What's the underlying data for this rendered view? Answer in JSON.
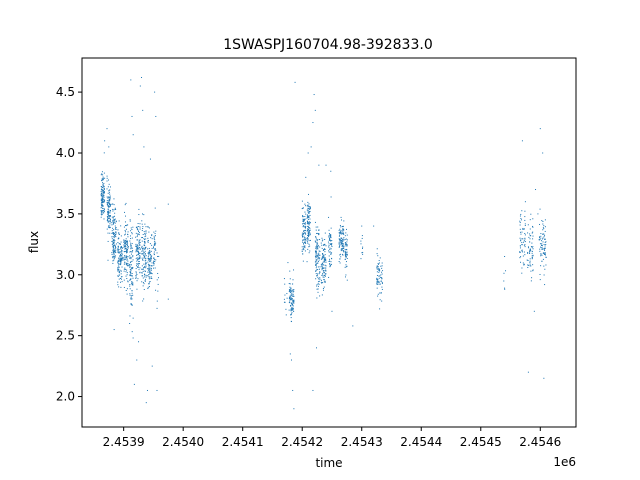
{
  "chart_data": {
    "type": "scatter",
    "title": "1SWASPJ160704.98-392833.0",
    "xlabel": "time",
    "ylabel": "flux",
    "x_offset_label": "1e6",
    "x_unit_multiplier": 1000000,
    "xlim": [
      2453830,
      2454660
    ],
    "ylim": [
      1.75,
      4.78
    ],
    "xticks": [
      2453900,
      2454000,
      2454100,
      2454200,
      2454300,
      2454400,
      2454500,
      2454600
    ],
    "xtick_labels": [
      "2.4539",
      "2.4540",
      "2.4541",
      "2.4542",
      "2.4543",
      "2.4544",
      "2.4545",
      "2.4546"
    ],
    "yticks": [
      2.0,
      2.5,
      3.0,
      3.5,
      4.0,
      4.5
    ],
    "ytick_labels": [
      "2.0",
      "2.5",
      "3.0",
      "3.5",
      "4.0",
      "4.5"
    ],
    "grid": false,
    "marker_color": "#1f77b4",
    "clusters": [
      {
        "x_start": 2453862,
        "x_end": 2453868,
        "y_center": 3.65,
        "y_spread": 0.18,
        "count": 120
      },
      {
        "x_start": 2453872,
        "x_end": 2453878,
        "y_center": 3.55,
        "y_spread": 0.2,
        "count": 110
      },
      {
        "x_start": 2453880,
        "x_end": 2453888,
        "y_center": 3.3,
        "y_spread": 0.22,
        "count": 120
      },
      {
        "x_start": 2453890,
        "x_end": 2453898,
        "y_center": 3.15,
        "y_spread": 0.2,
        "count": 120
      },
      {
        "x_start": 2453900,
        "x_end": 2453908,
        "y_center": 3.2,
        "y_spread": 0.25,
        "count": 120
      },
      {
        "x_start": 2453910,
        "x_end": 2453916,
        "y_center": 3.05,
        "y_spread": 0.35,
        "count": 100
      },
      {
        "x_start": 2453920,
        "x_end": 2453928,
        "y_center": 3.2,
        "y_spread": 0.25,
        "count": 110
      },
      {
        "x_start": 2453930,
        "x_end": 2453938,
        "y_center": 3.15,
        "y_spread": 0.28,
        "count": 110
      },
      {
        "x_start": 2453940,
        "x_end": 2453948,
        "y_center": 3.1,
        "y_spread": 0.22,
        "count": 100
      },
      {
        "x_start": 2453950,
        "x_end": 2453954,
        "y_center": 3.2,
        "y_spread": 0.25,
        "count": 40
      },
      {
        "x_start": 2453956,
        "x_end": 2453960,
        "y_center": 3.0,
        "y_spread": 0.25,
        "count": 10
      },
      {
        "x_start": 2454170,
        "x_end": 2454176,
        "y_center": 2.8,
        "y_spread": 0.15,
        "count": 10
      },
      {
        "x_start": 2454178,
        "x_end": 2454186,
        "y_center": 2.8,
        "y_spread": 0.15,
        "count": 100
      },
      {
        "x_start": 2454200,
        "x_end": 2454206,
        "y_center": 3.35,
        "y_spread": 0.18,
        "count": 90
      },
      {
        "x_start": 2454208,
        "x_end": 2454214,
        "y_center": 3.4,
        "y_spread": 0.2,
        "count": 100
      },
      {
        "x_start": 2454222,
        "x_end": 2454230,
        "y_center": 3.15,
        "y_spread": 0.25,
        "count": 110
      },
      {
        "x_start": 2454232,
        "x_end": 2454240,
        "y_center": 3.1,
        "y_spread": 0.2,
        "count": 100
      },
      {
        "x_start": 2454244,
        "x_end": 2454250,
        "y_center": 3.25,
        "y_spread": 0.2,
        "count": 60
      },
      {
        "x_start": 2454262,
        "x_end": 2454270,
        "y_center": 3.3,
        "y_spread": 0.15,
        "count": 100
      },
      {
        "x_start": 2454272,
        "x_end": 2454276,
        "y_center": 3.2,
        "y_spread": 0.15,
        "count": 50
      },
      {
        "x_start": 2454298,
        "x_end": 2454302,
        "y_center": 3.2,
        "y_spread": 0.15,
        "count": 10
      },
      {
        "x_start": 2454325,
        "x_end": 2454335,
        "y_center": 3.0,
        "y_spread": 0.15,
        "count": 70
      },
      {
        "x_start": 2454538,
        "x_end": 2454542,
        "y_center": 3.0,
        "y_spread": 0.1,
        "count": 5
      },
      {
        "x_start": 2454565,
        "x_end": 2454575,
        "y_center": 3.3,
        "y_spread": 0.2,
        "count": 60
      },
      {
        "x_start": 2454578,
        "x_end": 2454588,
        "y_center": 3.2,
        "y_spread": 0.25,
        "count": 60
      },
      {
        "x_start": 2454598,
        "x_end": 2454610,
        "y_center": 3.25,
        "y_spread": 0.25,
        "count": 80
      }
    ],
    "outliers": [
      [
        2453868,
        4.1
      ],
      [
        2453872,
        4.2
      ],
      [
        2453875,
        4.05
      ],
      [
        2453884,
        2.55
      ],
      [
        2453912,
        4.6
      ],
      [
        2453914,
        4.3
      ],
      [
        2453916,
        4.15
      ],
      [
        2453918,
        2.1
      ],
      [
        2453922,
        2.3
      ],
      [
        2453928,
        4.55
      ],
      [
        2453930,
        4.62
      ],
      [
        2453932,
        4.35
      ],
      [
        2453934,
        4.05
      ],
      [
        2453938,
        1.95
      ],
      [
        2453940,
        2.05
      ],
      [
        2453952,
        4.5
      ],
      [
        2453954,
        4.3
      ],
      [
        2453948,
        2.25
      ],
      [
        2453956,
        2.05
      ],
      [
        2453975,
        3.58
      ],
      [
        2453975,
        2.8
      ],
      [
        2453945,
        3.95
      ],
      [
        2453925,
        2.45
      ],
      [
        2453910,
        2.6
      ],
      [
        2454176,
        3.1
      ],
      [
        2454180,
        2.35
      ],
      [
        2454182,
        2.3
      ],
      [
        2454184,
        2.05
      ],
      [
        2454186,
        1.9
      ],
      [
        2454188,
        4.58
      ],
      [
        2454206,
        3.8
      ],
      [
        2454210,
        4.0
      ],
      [
        2454215,
        4.05
      ],
      [
        2454218,
        4.25
      ],
      [
        2454220,
        4.48
      ],
      [
        2454222,
        4.35
      ],
      [
        2454224,
        2.4
      ],
      [
        2454228,
        3.9
      ],
      [
        2454218,
        2.05
      ],
      [
        2454240,
        3.9
      ],
      [
        2454248,
        3.85
      ],
      [
        2454250,
        2.7
      ],
      [
        2454266,
        3.45
      ],
      [
        2454285,
        2.58
      ],
      [
        2454300,
        3.4
      ],
      [
        2454320,
        3.4
      ],
      [
        2454330,
        2.72
      ],
      [
        2454540,
        3.15
      ],
      [
        2454570,
        4.1
      ],
      [
        2454575,
        3.6
      ],
      [
        2454580,
        2.2
      ],
      [
        2454585,
        2.95
      ],
      [
        2454590,
        2.7
      ],
      [
        2454592,
        3.7
      ],
      [
        2454596,
        3.5
      ],
      [
        2454600,
        4.2
      ],
      [
        2454604,
        4.0
      ],
      [
        2454606,
        2.15
      ]
    ]
  }
}
